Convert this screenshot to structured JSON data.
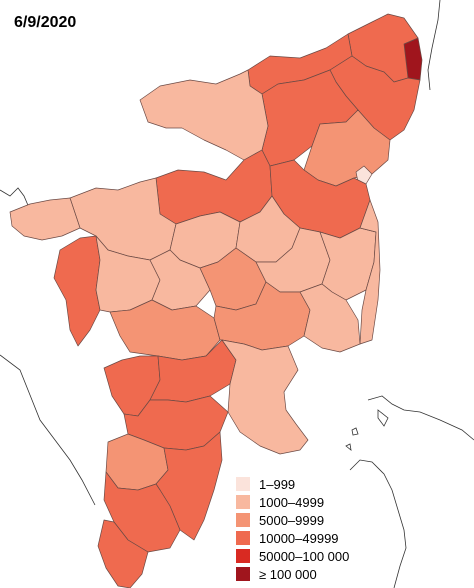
{
  "title": "6/9/2020",
  "legend": [
    {
      "label": "1–999",
      "color": "#fbe3db"
    },
    {
      "label": "1000–4999",
      "color": "#f8b89f"
    },
    {
      "label": "5000–9999",
      "color": "#f49474"
    },
    {
      "label": "10000–49999",
      "color": "#ef6a4f"
    },
    {
      "label": "50000–100 000",
      "color": "#d92a22"
    },
    {
      "label": "≥ 100 000",
      "color": "#a0151d"
    }
  ]
}
